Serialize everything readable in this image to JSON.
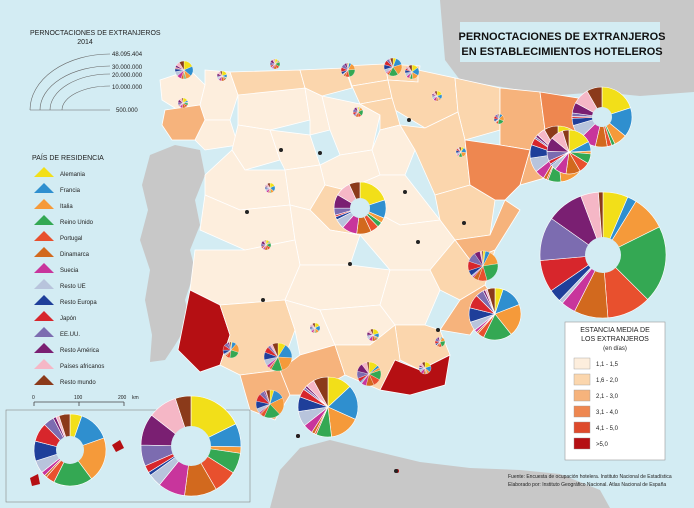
{
  "title": {
    "line1": "PERNOCTACIONES DE EXTRANJEROS",
    "line2": "EN ESTABLECIMIENTOS HOTELEROS"
  },
  "size_legend": {
    "title": "PERNOCTACIONES DE EXTRANJEROS",
    "year": "2014",
    "values": [
      "48.095.404",
      "30.000.000",
      "20.000.000",
      "10.000.000",
      "500.000"
    ]
  },
  "country_legend": {
    "title": "PAÍS DE RESIDENCIA",
    "items": [
      {
        "label": "Alemania",
        "color": "#f2df19"
      },
      {
        "label": "Francia",
        "color": "#2f8fcf"
      },
      {
        "label": "Italia",
        "color": "#f59a3a"
      },
      {
        "label": "Reino Unido",
        "color": "#34a853"
      },
      {
        "label": "Portugal",
        "color": "#e8502e"
      },
      {
        "label": "Dinamarca",
        "color": "#d2691e"
      },
      {
        "label": "Suecia",
        "color": "#c8359c"
      },
      {
        "label": "Resto UE",
        "color": "#b8c4dc"
      },
      {
        "label": "Resto Europa",
        "color": "#1f3f9a"
      },
      {
        "label": "Japón",
        "color": "#d7262c"
      },
      {
        "label": "EE.UU.",
        "color": "#7c6cb0"
      },
      {
        "label": "Resto América",
        "color": "#7a1f72"
      },
      {
        "label": "Países africanos",
        "color": "#f5b7c6"
      },
      {
        "label": "Resto mundo",
        "color": "#8b3a1a"
      }
    ]
  },
  "stay_legend": {
    "title_line1": "ESTANCIA MEDIA DE",
    "title_line2": "LOS EXTRANJEROS",
    "unit": "(en días)",
    "classes": [
      {
        "label": "1,1 - 1,5",
        "color": "#fdeedd"
      },
      {
        "label": "1,6 - 2,0",
        "color": "#fbd6ad"
      },
      {
        "label": "2,1 - 3,0",
        "color": "#f6b37c"
      },
      {
        "label": "3,1 - 4,0",
        "color": "#ee8750"
      },
      {
        "label": "4,1 - 5,0",
        "color": "#de4a2c"
      },
      {
        "label": ">5,0",
        "color": "#b50f13"
      }
    ]
  },
  "scale_bar": {
    "labels": [
      "0",
      "100",
      "200",
      "km"
    ]
  },
  "source": {
    "line1": "Fuente: Encuesta de ocupación hotelera. Instituto Nacional de Estadística",
    "line2": "Elaborado por: Instituto Geográfico Nacional. Atlas Nacional de España"
  },
  "colors": {
    "sea": "#d3ecf3",
    "foreign_land": "#c8c8c8",
    "border": "#ffffff"
  }
}
